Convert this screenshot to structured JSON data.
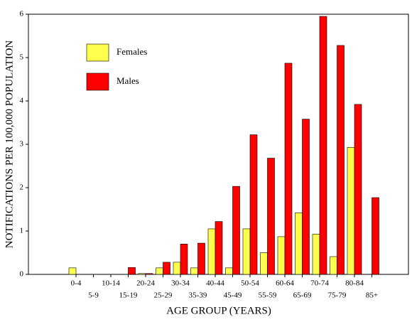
{
  "chart_data": {
    "type": "bar",
    "x_label": "AGE GROUP (YEARS)",
    "y_label": "NOTIFICATIONS PER 100,000 POPULATION",
    "categories": [
      "0-4",
      "5-9",
      "10-14",
      "15-19",
      "20-24",
      "25-29",
      "30-34",
      "35-39",
      "40-44",
      "45-49",
      "50-54",
      "55-59",
      "60-64",
      "65-69",
      "70-74",
      "75-79",
      "80-84",
      "85+"
    ],
    "series": [
      {
        "name": "Females",
        "color": "#ffff4d",
        "values": [
          0.15,
          0,
          0,
          0,
          0.02,
          0.15,
          0.28,
          0.15,
          1.05,
          0.15,
          1.05,
          0.5,
          0.87,
          1.42,
          0.93,
          0.41,
          2.93,
          0
        ]
      },
      {
        "name": "Males",
        "color": "#ff0000",
        "values": [
          0,
          0,
          0,
          0.16,
          0.02,
          0.28,
          0.7,
          0.72,
          1.22,
          2.03,
          3.22,
          2.68,
          4.87,
          3.58,
          5.95,
          5.28,
          3.92,
          1.77
        ]
      }
    ],
    "ylim": [
      0,
      6
    ],
    "yticks": [
      0,
      1,
      2,
      3,
      4,
      5,
      6
    ],
    "legend": "upper-left"
  }
}
